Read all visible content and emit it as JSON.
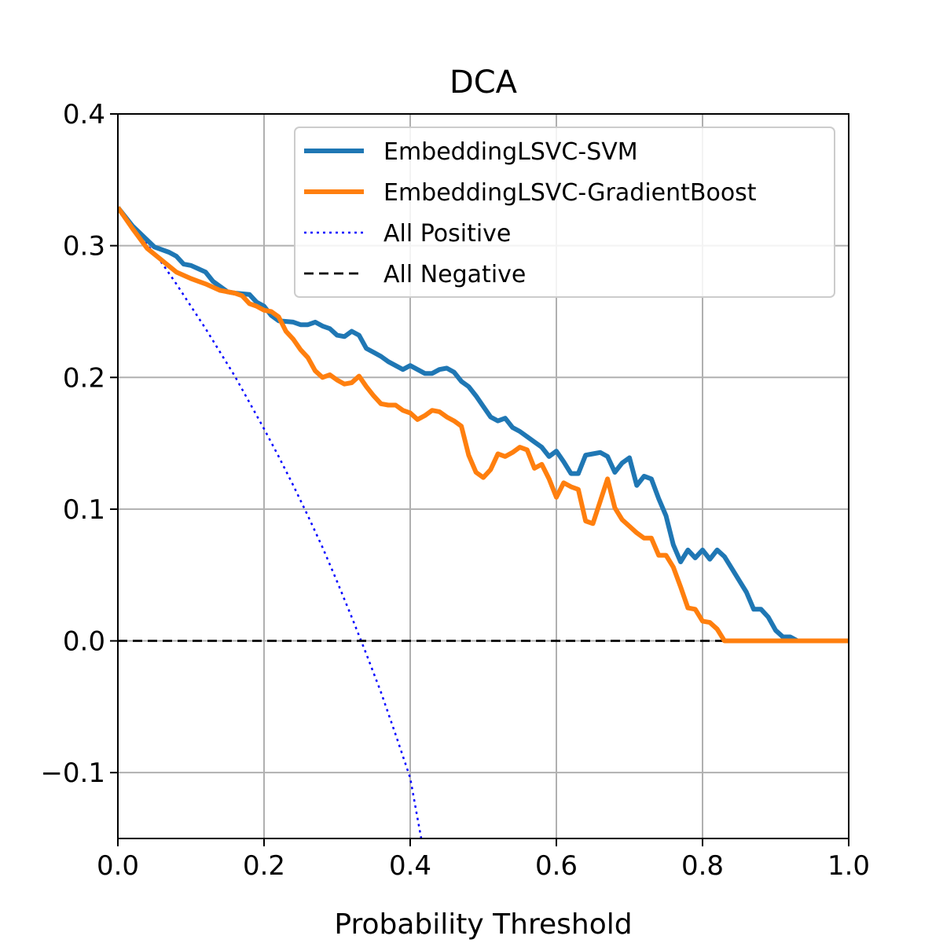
{
  "chart_data": {
    "type": "line",
    "title": "DCA",
    "xlabel": "Probability Threshold",
    "ylabel": "",
    "xlim": [
      0.0,
      1.0
    ],
    "ylim": [
      -0.15,
      0.4
    ],
    "grid": true,
    "legend_position": "top-right",
    "xticks": [
      {
        "value": 0.0,
        "label": "0.0"
      },
      {
        "value": 0.2,
        "label": "0.2"
      },
      {
        "value": 0.4,
        "label": "0.4"
      },
      {
        "value": 0.6,
        "label": "0.6"
      },
      {
        "value": 0.8,
        "label": "0.8"
      },
      {
        "value": 1.0,
        "label": "1.0"
      }
    ],
    "yticks": [
      {
        "value": -0.1,
        "label": "−0.1"
      },
      {
        "value": 0.0,
        "label": "0.0"
      },
      {
        "value": 0.1,
        "label": "0.1"
      },
      {
        "value": 0.2,
        "label": "0.2"
      },
      {
        "value": 0.3,
        "label": "0.3"
      },
      {
        "value": 0.4,
        "label": "0.4"
      }
    ],
    "series": [
      {
        "name": "EmbeddingLSVC-SVM",
        "color": "#1f77b4",
        "style": "solid",
        "x": [
          0.0,
          0.02,
          0.05,
          0.07,
          0.08,
          0.09,
          0.1,
          0.12,
          0.13,
          0.15,
          0.16,
          0.18,
          0.19,
          0.2,
          0.21,
          0.22,
          0.24,
          0.25,
          0.26,
          0.27,
          0.28,
          0.29,
          0.3,
          0.31,
          0.32,
          0.33,
          0.34,
          0.35,
          0.36,
          0.37,
          0.38,
          0.39,
          0.4,
          0.41,
          0.42,
          0.43,
          0.44,
          0.45,
          0.46,
          0.47,
          0.48,
          0.49,
          0.5,
          0.51,
          0.52,
          0.53,
          0.54,
          0.55,
          0.56,
          0.57,
          0.58,
          0.59,
          0.6,
          0.61,
          0.62,
          0.63,
          0.64,
          0.65,
          0.66,
          0.67,
          0.68,
          0.69,
          0.7,
          0.71,
          0.72,
          0.73,
          0.74,
          0.75,
          0.76,
          0.77,
          0.78,
          0.79,
          0.8,
          0.81,
          0.82,
          0.83,
          0.84,
          0.85,
          0.86,
          0.87,
          0.88,
          0.89,
          0.9,
          0.91,
          0.92,
          0.93,
          1.0
        ],
        "y": [
          0.329,
          0.315,
          0.299,
          0.295,
          0.292,
          0.286,
          0.285,
          0.28,
          0.273,
          0.265,
          0.264,
          0.263,
          0.257,
          0.254,
          0.247,
          0.243,
          0.242,
          0.24,
          0.24,
          0.242,
          0.239,
          0.237,
          0.232,
          0.231,
          0.235,
          0.232,
          0.222,
          0.219,
          0.216,
          0.212,
          0.209,
          0.206,
          0.209,
          0.206,
          0.203,
          0.203,
          0.206,
          0.207,
          0.204,
          0.197,
          0.193,
          0.186,
          0.178,
          0.17,
          0.167,
          0.169,
          0.162,
          0.159,
          0.155,
          0.151,
          0.147,
          0.14,
          0.144,
          0.136,
          0.127,
          0.127,
          0.141,
          0.142,
          0.143,
          0.14,
          0.128,
          0.135,
          0.139,
          0.118,
          0.125,
          0.123,
          0.108,
          0.095,
          0.073,
          0.06,
          0.069,
          0.063,
          0.069,
          0.062,
          0.069,
          0.064,
          0.055,
          0.046,
          0.037,
          0.024,
          0.024,
          0.018,
          0.008,
          0.003,
          0.003,
          0.0,
          0.0
        ]
      },
      {
        "name": "EmbeddingLSVC-GradientBoost",
        "color": "#ff7f0e",
        "style": "solid",
        "x": [
          0.0,
          0.02,
          0.04,
          0.06,
          0.08,
          0.1,
          0.12,
          0.14,
          0.16,
          0.17,
          0.18,
          0.19,
          0.2,
          0.21,
          0.22,
          0.23,
          0.24,
          0.25,
          0.26,
          0.27,
          0.28,
          0.29,
          0.3,
          0.31,
          0.32,
          0.33,
          0.34,
          0.35,
          0.36,
          0.37,
          0.38,
          0.39,
          0.4,
          0.41,
          0.42,
          0.43,
          0.44,
          0.45,
          0.46,
          0.47,
          0.48,
          0.49,
          0.5,
          0.51,
          0.52,
          0.53,
          0.54,
          0.55,
          0.56,
          0.57,
          0.58,
          0.59,
          0.6,
          0.61,
          0.62,
          0.63,
          0.64,
          0.65,
          0.66,
          0.67,
          0.68,
          0.69,
          0.7,
          0.71,
          0.72,
          0.73,
          0.74,
          0.75,
          0.76,
          0.77,
          0.78,
          0.79,
          0.8,
          0.81,
          0.82,
          0.83,
          0.84,
          1.0
        ],
        "y": [
          0.329,
          0.313,
          0.298,
          0.289,
          0.28,
          0.275,
          0.271,
          0.266,
          0.264,
          0.262,
          0.256,
          0.254,
          0.251,
          0.25,
          0.246,
          0.235,
          0.229,
          0.221,
          0.215,
          0.205,
          0.2,
          0.202,
          0.198,
          0.195,
          0.196,
          0.201,
          0.193,
          0.186,
          0.18,
          0.179,
          0.179,
          0.175,
          0.173,
          0.168,
          0.171,
          0.175,
          0.174,
          0.17,
          0.167,
          0.163,
          0.141,
          0.128,
          0.124,
          0.13,
          0.142,
          0.14,
          0.143,
          0.147,
          0.145,
          0.131,
          0.134,
          0.123,
          0.109,
          0.12,
          0.117,
          0.115,
          0.091,
          0.089,
          0.106,
          0.123,
          0.101,
          0.092,
          0.087,
          0.082,
          0.078,
          0.078,
          0.065,
          0.065,
          0.056,
          0.041,
          0.025,
          0.024,
          0.015,
          0.014,
          0.009,
          0.0,
          0.0,
          0.0
        ]
      },
      {
        "name": "All Positive",
        "color": "#0000ff",
        "style": "dotted",
        "x": [
          0.0,
          0.02,
          0.04,
          0.06,
          0.08,
          0.1,
          0.12,
          0.14,
          0.16,
          0.18,
          0.2,
          0.22,
          0.24,
          0.26,
          0.28,
          0.3,
          0.32,
          0.33,
          0.34,
          0.36,
          0.38,
          0.4,
          0.415
        ],
        "y": [
          0.329,
          0.315,
          0.301,
          0.287,
          0.271,
          0.254,
          0.237,
          0.219,
          0.201,
          0.181,
          0.161,
          0.14,
          0.118,
          0.095,
          0.071,
          0.045,
          0.018,
          0.004,
          -0.01,
          -0.039,
          -0.071,
          -0.104,
          -0.15
        ]
      },
      {
        "name": "All Negative",
        "color": "#000000",
        "style": "dashed",
        "x": [
          0.0,
          1.0
        ],
        "y": [
          0.0,
          0.0
        ]
      }
    ]
  }
}
